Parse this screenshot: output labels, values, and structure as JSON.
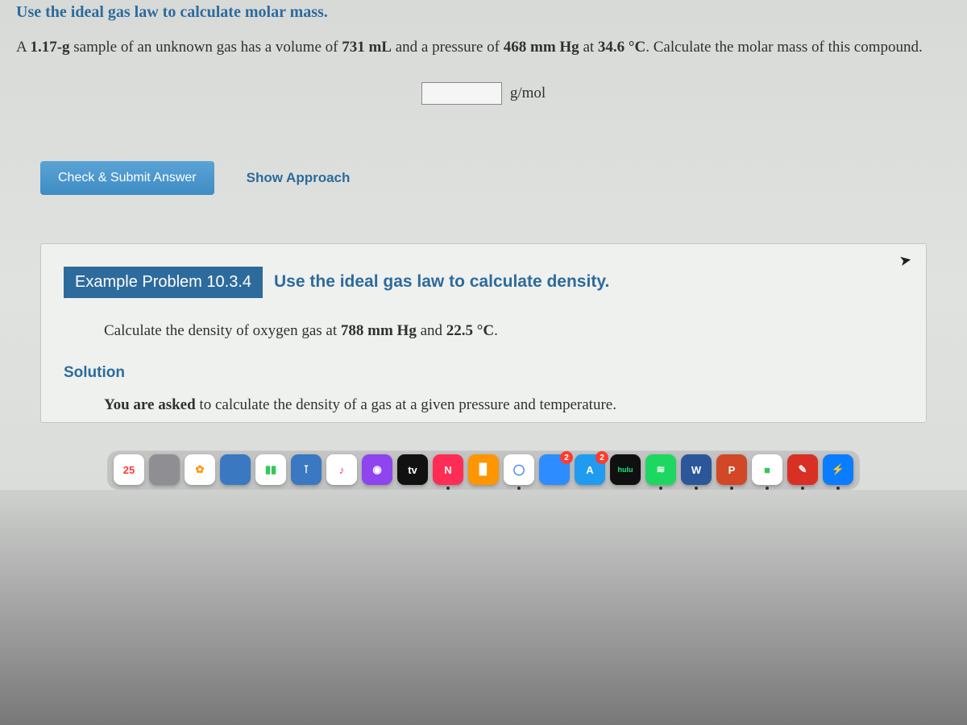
{
  "instruction": "Use the ideal gas law to calculate molar mass.",
  "problem": {
    "prefix": "A ",
    "mass": "1.17-g",
    "mid1": " sample of an unknown gas has a volume of ",
    "volume": "731 mL",
    "mid2": " and a pressure of ",
    "pressure": "468 mm Hg",
    "mid3": " at ",
    "temp": "34.6 °C",
    "suffix": ". Calculate the molar mass of this compound."
  },
  "answer": {
    "value": "",
    "unit": "g/mol"
  },
  "buttons": {
    "submit": "Check & Submit Answer",
    "approach": "Show Approach"
  },
  "example": {
    "badge": "Example Problem 10.3.4",
    "title": "Use the ideal gas law to calculate density.",
    "prompt_prefix": "Calculate the density of oxygen gas at ",
    "prompt_p": "788 mm Hg",
    "prompt_mid": " and ",
    "prompt_t": "22.5 °C",
    "prompt_suffix": ".",
    "solution_heading": "Solution",
    "solution_lead": "You are asked",
    "solution_rest": "  to calculate the density of a gas at a given pressure and temperature."
  },
  "dock": [
    {
      "name": "calendar-icon",
      "bg": "#ffffff",
      "fg": "#ff3b30",
      "label": "25",
      "dot": false
    },
    {
      "name": "contacts-icon",
      "bg": "#8e8e93",
      "fg": "#ffffff",
      "label": "",
      "dot": false
    },
    {
      "name": "photos-icon",
      "bg": "#ffffff",
      "fg": "#ff9500",
      "label": "✿",
      "dot": false
    },
    {
      "name": "preview-icon",
      "bg": "#3a78c2",
      "fg": "#ffffff",
      "label": "",
      "dot": false
    },
    {
      "name": "numbers-icon",
      "bg": "#ffffff",
      "fg": "#34c759",
      "label": "▮▮",
      "dot": false
    },
    {
      "name": "keynote-icon",
      "bg": "#3a78c2",
      "fg": "#ffffff",
      "label": "⊺",
      "dot": false
    },
    {
      "name": "music-icon",
      "bg": "#ffffff",
      "fg": "#fc3158",
      "label": "♪",
      "dot": false
    },
    {
      "name": "podcasts-icon",
      "bg": "#8e44ef",
      "fg": "#ffffff",
      "label": "◉",
      "dot": false
    },
    {
      "name": "appletv-icon",
      "bg": "#111111",
      "fg": "#ffffff",
      "label": "tv",
      "dot": false
    },
    {
      "name": "notability-icon",
      "bg": "#ff2d55",
      "fg": "#ffffff",
      "label": "N",
      "dot": true
    },
    {
      "name": "books-icon",
      "bg": "#ff9500",
      "fg": "#ffffff",
      "label": "▉",
      "dot": false
    },
    {
      "name": "chrome-icon",
      "bg": "#ffffff",
      "fg": "#4285f4",
      "label": "◯",
      "dot": true
    },
    {
      "name": "zoom-icon",
      "bg": "#2d8cff",
      "fg": "#ffffff",
      "label": "",
      "badge": "2",
      "dot": false
    },
    {
      "name": "appstore-icon",
      "bg": "#1f9cf0",
      "fg": "#ffffff",
      "label": "A",
      "badge": "2",
      "dot": false
    },
    {
      "name": "hulu-icon",
      "bg": "#101010",
      "fg": "#1ce783",
      "label": "hulu",
      "dot": false,
      "fs": "9"
    },
    {
      "name": "spotify-icon",
      "bg": "#1ed760",
      "fg": "#ffffff",
      "label": "≋",
      "dot": true
    },
    {
      "name": "word-icon",
      "bg": "#2b579a",
      "fg": "#ffffff",
      "label": "W",
      "dot": true
    },
    {
      "name": "powerpoint-icon",
      "bg": "#d24726",
      "fg": "#ffffff",
      "label": "P",
      "dot": true
    },
    {
      "name": "facetime-icon",
      "bg": "#ffffff",
      "fg": "#34c759",
      "label": "■",
      "dot": true
    },
    {
      "name": "pdf-icon",
      "bg": "#d93025",
      "fg": "#ffffff",
      "label": "✎",
      "dot": true
    },
    {
      "name": "messenger-icon",
      "bg": "#0a7cff",
      "fg": "#ffffff",
      "label": "⚡",
      "dot": true
    }
  ],
  "colors": {
    "link_blue": "#2d6b9c",
    "button_blue_top": "#5aa3d6",
    "button_blue_bottom": "#3f8cc4",
    "page_bg": "#e0e2e0",
    "card_bg": "#eff1ef",
    "text": "#303030"
  }
}
